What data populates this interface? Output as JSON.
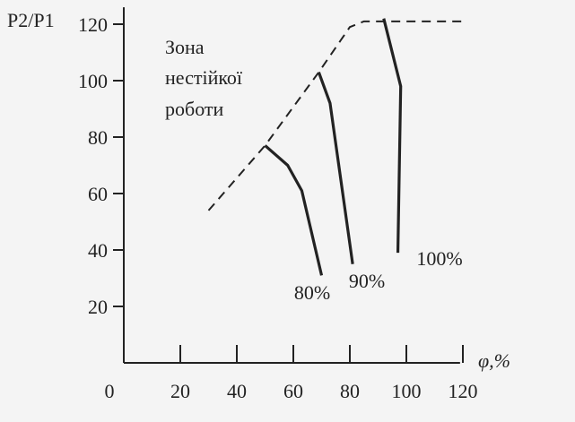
{
  "chart_data": {
    "type": "line",
    "ylabel": "P2/P1",
    "xlabel": "φ,%",
    "xlim": [
      0,
      120
    ],
    "ylim": [
      0,
      120
    ],
    "x_ticks": [
      0,
      20,
      40,
      60,
      80,
      100,
      120
    ],
    "y_ticks": [
      20,
      40,
      60,
      80,
      100,
      120
    ],
    "grid": false,
    "annotation": {
      "lines": [
        "Зона",
        "нестійкої",
        "роботи"
      ]
    },
    "boundary": {
      "style": "dashed",
      "points": [
        [
          30,
          54
        ],
        [
          50,
          77
        ],
        [
          69,
          103
        ],
        [
          80,
          119
        ],
        [
          85,
          121
        ],
        [
          100,
          121
        ],
        [
          120,
          121
        ]
      ]
    },
    "series": [
      {
        "name": "80%",
        "style": "solid",
        "points": [
          [
            50,
            77
          ],
          [
            58,
            70
          ],
          [
            63,
            61
          ],
          [
            70,
            31
          ]
        ]
      },
      {
        "name": "90%",
        "style": "solid",
        "points": [
          [
            69,
            103
          ],
          [
            73,
            92
          ],
          [
            81,
            35
          ]
        ]
      },
      {
        "name": "100%",
        "style": "solid",
        "points": [
          [
            92,
            122
          ],
          [
            98,
            98
          ],
          [
            97,
            39
          ]
        ]
      }
    ]
  }
}
